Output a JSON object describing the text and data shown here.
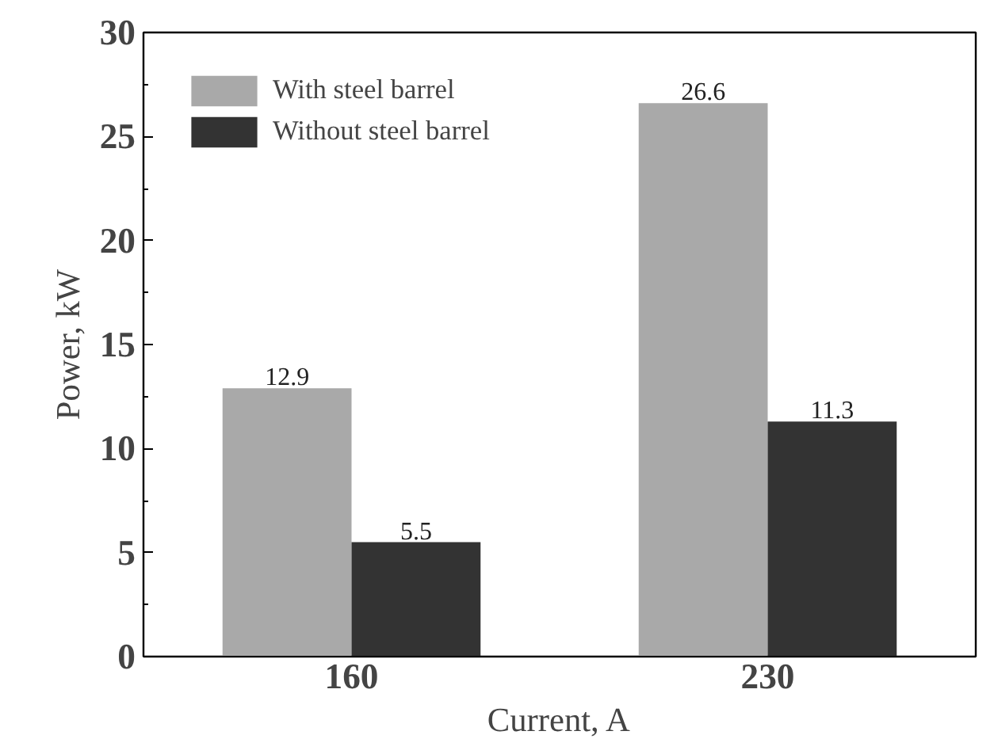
{
  "chart_data": {
    "type": "bar",
    "xlabel": "Current, A",
    "ylabel": "Power, kW",
    "categories": [
      "160",
      "230"
    ],
    "series": [
      {
        "name": "With steel barrel",
        "color": "#a9a9a9",
        "values": [
          12.9,
          26.6
        ]
      },
      {
        "name": "Without steel barrel",
        "color": "#333333",
        "values": [
          5.5,
          11.3
        ]
      }
    ],
    "ylim": [
      0,
      30
    ],
    "yticks": [
      0,
      5,
      10,
      15,
      20,
      25,
      30
    ],
    "data_labels": true,
    "legend": "top left",
    "grid": false
  }
}
